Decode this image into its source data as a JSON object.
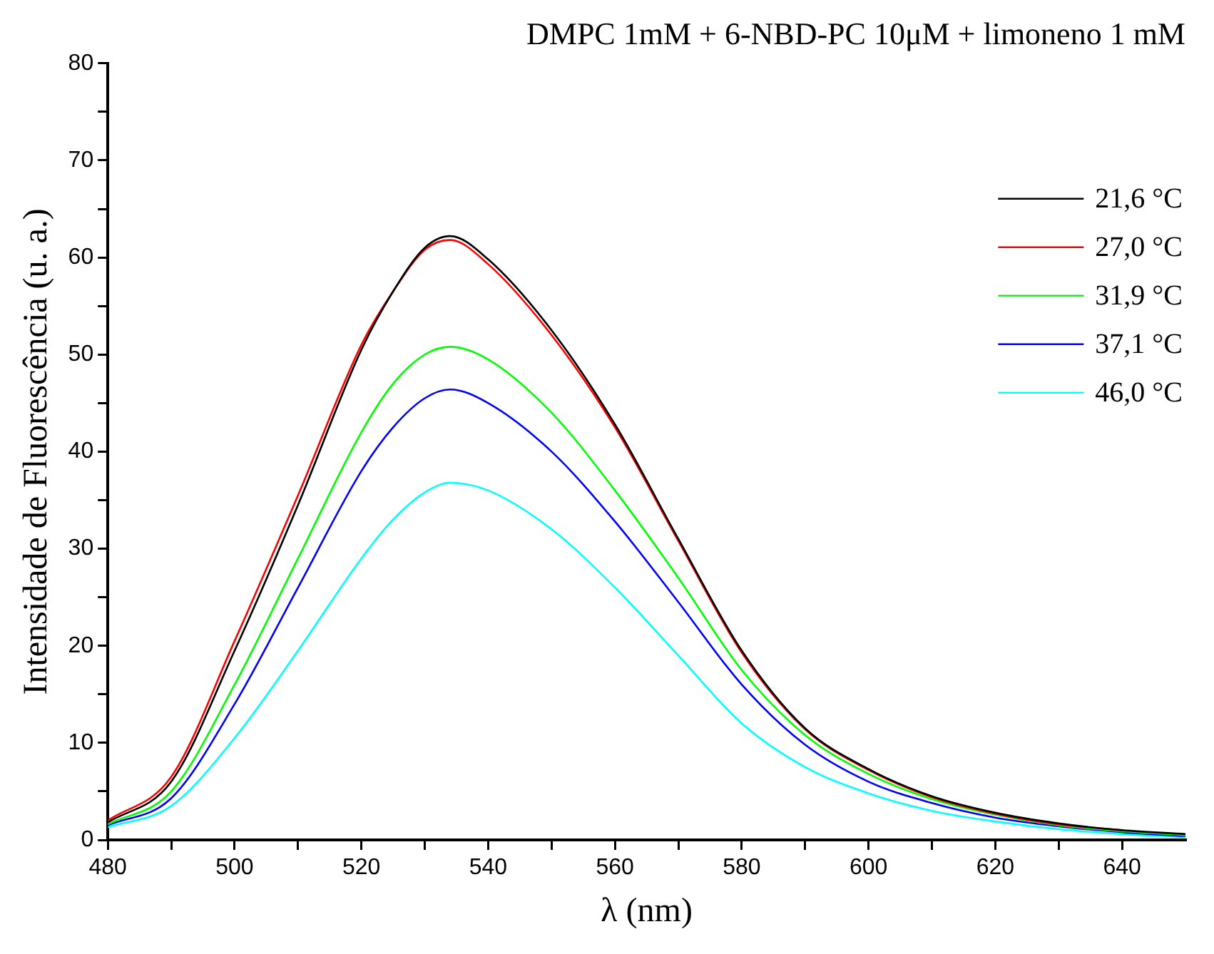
{
  "chart_data": {
    "type": "line",
    "title": "DMPC 1mM + 6-NBD-PC 10μM + limoneno 1 mM",
    "xlabel": "λ (nm)",
    "ylabel": "Intensidade de Fluorescência (u. a.)",
    "x": [
      480,
      490,
      500,
      510,
      520,
      525,
      530,
      534,
      540,
      550,
      560,
      570,
      580,
      590,
      600,
      610,
      620,
      630,
      640,
      650
    ],
    "series": [
      {
        "name": "21,6 °C",
        "color": "#000000",
        "values": [
          1.8,
          6,
          19.5,
          34.5,
          50.5,
          56.5,
          61,
          62.2,
          59.8,
          52.5,
          42.8,
          31,
          19.5,
          11.5,
          7.3,
          4.5,
          2.8,
          1.7,
          1,
          0.6
        ]
      },
      {
        "name": "27,0 °C",
        "color": "#ff0000",
        "values": [
          2,
          6.5,
          20.5,
          35.5,
          51,
          56.5,
          60.8,
          61.8,
          59.3,
          52,
          42.5,
          30.8,
          19.3,
          11.4,
          7.2,
          4.4,
          2.7,
          1.6,
          1,
          null
        ]
      },
      {
        "name": "31,9 °C",
        "color": "#00ff00",
        "values": [
          1.6,
          5,
          16,
          29,
          42,
          47,
          50,
          50.8,
          49.5,
          44,
          36,
          27,
          17.5,
          10.8,
          6.8,
          4.2,
          2.6,
          1.5,
          0.9,
          0.5
        ]
      },
      {
        "name": "37,1 °C",
        "color": "#0000ff",
        "values": [
          1.5,
          4.3,
          14,
          26,
          38,
          42.5,
          45.5,
          46.4,
          45,
          40,
          32.8,
          24.5,
          16,
          9.8,
          6,
          3.8,
          2.3,
          1.4,
          0.8,
          0.4
        ]
      },
      {
        "name": "46,0 °C",
        "color": "#00ffff",
        "values": [
          1.3,
          3.5,
          10.5,
          19.5,
          29,
          33,
          35.8,
          36.8,
          36,
          32,
          26,
          19,
          12,
          7.5,
          4.8,
          3,
          1.9,
          1.1,
          0.6,
          0.3
        ]
      }
    ],
    "xlim": [
      480,
      650
    ],
    "xticks": [
      480,
      {
        "value": 490,
        "label": null
      },
      500,
      {
        "value": 510,
        "label": null
      },
      520,
      {
        "value": 530,
        "label": null
      },
      540,
      {
        "value": 550,
        "label": null
      },
      560,
      {
        "value": 570,
        "label": null
      },
      580,
      {
        "value": 590,
        "label": null
      },
      600,
      {
        "value": 610,
        "label": null
      },
      620,
      {
        "value": 630,
        "label": null
      },
      640
    ],
    "ylim": [
      0,
      80
    ],
    "yticks": [
      0,
      {
        "value": 5,
        "label": null
      },
      10,
      {
        "value": 15,
        "label": null
      },
      20,
      {
        "value": 25,
        "label": null
      },
      30,
      {
        "value": 35,
        "label": null
      },
      40,
      {
        "value": 45,
        "label": null
      },
      50,
      {
        "value": 55,
        "label": null
      },
      60,
      {
        "value": 65,
        "label": null
      },
      70,
      {
        "value": 75,
        "label": null
      },
      80
    ],
    "legend": "top right",
    "grid": false,
    "marker": "none",
    "line_style": "solid"
  }
}
